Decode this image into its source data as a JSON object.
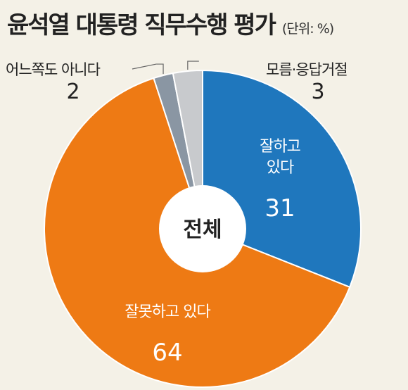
{
  "chart_data": {
    "type": "pie",
    "title": "윤석열 대통령 직무수행 평가",
    "unit": "(단위: %)",
    "center_label": "전체",
    "categories": [
      "잘하고 있다",
      "잘못하고 있다",
      "어느쪽도 아니다",
      "모름·응답거절"
    ],
    "values": [
      31,
      64,
      2,
      3
    ],
    "slices": [
      {
        "label_lines": [
          "잘하고",
          "있다"
        ],
        "value": 31,
        "color": "#1f77bd",
        "label_position": "inside"
      },
      {
        "label_lines": [
          "잘못하고 있다"
        ],
        "value": 64,
        "color": "#ee7a14",
        "label_position": "inside"
      },
      {
        "label_lines": [
          "어느쪽도 아니다"
        ],
        "value": 2,
        "color": "#8a96a3",
        "label_position": "outside-left"
      },
      {
        "label_lines": [
          "모름·응답거절"
        ],
        "value": 3,
        "color": "#c8cacd",
        "label_position": "outside-right"
      }
    ],
    "start_angle": "12 o'clock",
    "direction": "clockwise"
  }
}
